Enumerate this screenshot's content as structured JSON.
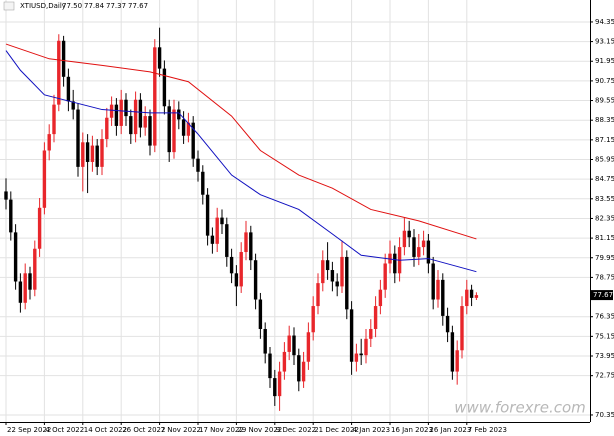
{
  "chart_data": {
    "type": "candlestick",
    "title": "XTIUSD,Daily",
    "last_bar_labels": [
      "77.50",
      "77.84",
      "77.37",
      "77.67"
    ],
    "open": [
      84.0,
      83.5,
      81.5,
      78.5,
      77.2,
      79.0,
      78.0,
      80.5,
      83.0,
      86.5,
      87.5,
      89.3,
      93.2,
      91.0,
      89.5,
      89.0,
      85.5,
      87.0,
      85.8,
      86.8,
      85.5,
      87.2,
      88.5,
      89.3,
      88.0,
      89.6,
      88.6,
      87.5,
      89.6,
      87.9,
      88.6,
      86.8,
      92.8,
      91.5,
      89.2,
      86.4,
      89.0,
      88.4,
      87.4,
      88.2,
      86.0,
      85.2,
      83.8,
      81.3,
      80.8,
      82.4,
      82.0,
      80.0,
      79.0,
      78.2,
      80.3,
      81.5,
      79.8,
      77.4,
      75.6,
      74.1,
      72.6,
      71.5,
      73.0,
      74.2,
      75.2,
      74.0,
      72.4,
      73.6,
      75.4,
      77.0,
      78.4,
      79.8,
      79.2,
      78.5,
      78.2,
      80.0,
      76.8,
      73.6,
      74.1,
      74.0,
      75.0,
      75.6,
      77.0,
      78.0,
      79.6,
      80.2,
      79.0,
      80.6,
      81.6,
      81.2,
      80.0,
      80.6,
      81.0,
      79.6,
      77.4,
      78.6,
      76.4,
      75.4,
      73.0,
      74.3,
      77.0,
      78.0,
      77.5
    ],
    "high": [
      84.8,
      84.0,
      82.0,
      79.0,
      79.6,
      79.4,
      81.0,
      83.6,
      87.0,
      88.1,
      89.9,
      93.6,
      93.5,
      91.5,
      90.2,
      89.4,
      87.6,
      87.5,
      87.4,
      87.2,
      87.8,
      89.1,
      89.8,
      89.7,
      90.2,
      90.0,
      89.0,
      90.1,
      90.0,
      89.2,
      89.0,
      93.3,
      94.0,
      92.0,
      89.6,
      89.6,
      89.5,
      88.9,
      88.8,
      88.6,
      86.5,
      85.6,
      84.2,
      81.8,
      83.0,
      82.9,
      82.4,
      80.5,
      79.5,
      80.9,
      82.2,
      81.9,
      80.2,
      77.8,
      76.0,
      74.5,
      73.1,
      73.6,
      74.8,
      75.8,
      75.7,
      74.4,
      74.2,
      76.0,
      77.6,
      79.0,
      80.4,
      80.9,
      79.7,
      79.0,
      81.0,
      80.4,
      77.3,
      74.7,
      75.0,
      75.6,
      76.2,
      77.6,
      78.6,
      80.2,
      81.0,
      80.7,
      81.2,
      82.4,
      82.2,
      81.7,
      81.4,
      81.6,
      81.4,
      80.0,
      79.2,
      79.0,
      76.9,
      75.8,
      74.9,
      77.6,
      78.6,
      78.3,
      77.84
    ],
    "low": [
      82.9,
      81.0,
      78.0,
      76.6,
      76.8,
      77.4,
      77.6,
      80.0,
      82.6,
      85.9,
      87.0,
      88.9,
      90.4,
      88.9,
      88.4,
      84.9,
      84.0,
      83.9,
      85.2,
      85.0,
      85.0,
      86.7,
      88.0,
      87.4,
      87.5,
      88.0,
      86.9,
      87.0,
      87.3,
      87.4,
      86.2,
      86.4,
      91.0,
      88.7,
      85.8,
      86.0,
      87.8,
      86.9,
      87.0,
      85.5,
      84.6,
      83.2,
      80.7,
      80.2,
      80.3,
      81.4,
      79.4,
      78.4,
      77.0,
      77.8,
      79.8,
      79.2,
      76.8,
      75.0,
      73.5,
      72.0,
      70.9,
      70.6,
      72.5,
      73.7,
      73.4,
      71.8,
      72.0,
      73.1,
      74.9,
      76.5,
      77.9,
      78.6,
      77.9,
      77.6,
      77.8,
      76.2,
      72.8,
      73.0,
      73.4,
      73.5,
      74.5,
      75.1,
      76.5,
      77.5,
      79.0,
      78.4,
      78.5,
      80.1,
      80.6,
      79.4,
      79.5,
      80.1,
      79.0,
      76.8,
      76.9,
      75.8,
      74.8,
      72.5,
      72.2,
      73.8,
      76.5,
      77.0,
      77.37
    ],
    "close": [
      83.5,
      81.5,
      78.5,
      77.2,
      79.0,
      78.0,
      80.5,
      83.0,
      86.5,
      87.5,
      89.3,
      93.2,
      91.0,
      89.5,
      89.0,
      85.5,
      87.0,
      85.8,
      86.8,
      85.5,
      87.2,
      88.5,
      89.3,
      88.0,
      89.6,
      88.6,
      87.5,
      89.6,
      87.9,
      88.6,
      86.8,
      92.8,
      91.5,
      89.2,
      86.4,
      89.0,
      88.4,
      87.4,
      88.2,
      86.0,
      85.2,
      83.8,
      81.3,
      80.8,
      82.4,
      82.0,
      80.0,
      79.0,
      78.2,
      80.3,
      81.5,
      79.8,
      77.4,
      75.6,
      74.1,
      72.6,
      71.5,
      73.0,
      74.2,
      75.2,
      74.0,
      72.4,
      73.6,
      75.4,
      77.0,
      78.4,
      79.8,
      79.2,
      78.5,
      78.2,
      80.0,
      76.8,
      73.6,
      74.1,
      74.0,
      75.0,
      75.6,
      77.0,
      78.0,
      79.6,
      80.2,
      79.0,
      80.6,
      81.6,
      81.2,
      80.0,
      80.6,
      81.0,
      79.6,
      77.4,
      78.6,
      76.4,
      75.4,
      73.0,
      74.3,
      77.0,
      78.0,
      77.5,
      77.67
    ],
    "bull_color": "#e8262b",
    "bear_color": "#000000",
    "series": [
      {
        "color": "#e01010",
        "x": [
          0,
          9,
          20,
          30,
          38,
          47,
          53,
          61,
          68,
          76,
          86,
          98
        ],
        "values": [
          93.0,
          92.1,
          91.7,
          91.3,
          90.7,
          88.6,
          86.5,
          85.0,
          84.2,
          82.9,
          82.2,
          81.1
        ]
      },
      {
        "color": "#1010c0",
        "x": [
          0,
          3,
          8,
          20,
          30,
          36,
          40,
          47,
          53,
          61,
          68,
          74,
          82,
          88,
          98
        ],
        "values": [
          92.6,
          91.4,
          89.9,
          89.0,
          88.8,
          88.8,
          87.5,
          85.0,
          83.8,
          82.9,
          81.4,
          80.1,
          79.8,
          79.9,
          79.1
        ]
      }
    ],
    "xlim": [
      -1.25,
      121.67
    ],
    "ylim": [
      69.92,
      95.69
    ],
    "xticks": [
      {
        "value": 0,
        "label": "22 Sep 2022"
      },
      {
        "value": 8,
        "label": "4 Oct 2022"
      },
      {
        "value": 16,
        "label": "14 Oct 2022"
      },
      {
        "value": 24,
        "label": "26 Oct 2022"
      },
      {
        "value": 32,
        "label": "7 Nov 2022"
      },
      {
        "value": 40,
        "label": "17 Nov 2022"
      },
      {
        "value": 48,
        "label": "29 Nov 2022"
      },
      {
        "value": 56,
        "label": "9 Dec 2022"
      },
      {
        "value": 64,
        "label": "21 Dec 2022"
      },
      {
        "value": 72,
        "label": "4 Jan 2023"
      },
      {
        "value": 80,
        "label": "16 Jan 2023"
      },
      {
        "value": 88,
        "label": "26 Jan 2023"
      },
      {
        "value": 96,
        "label": "7 Feb 2023"
      }
    ],
    "yticks": [
      94.35,
      93.15,
      91.95,
      90.75,
      89.55,
      88.35,
      87.15,
      85.95,
      84.75,
      83.55,
      82.35,
      81.15,
      79.95,
      78.75,
      76.35,
      75.15,
      73.95,
      72.75,
      70.35
    ],
    "grid": true,
    "watermark": "www.forexre.com"
  }
}
